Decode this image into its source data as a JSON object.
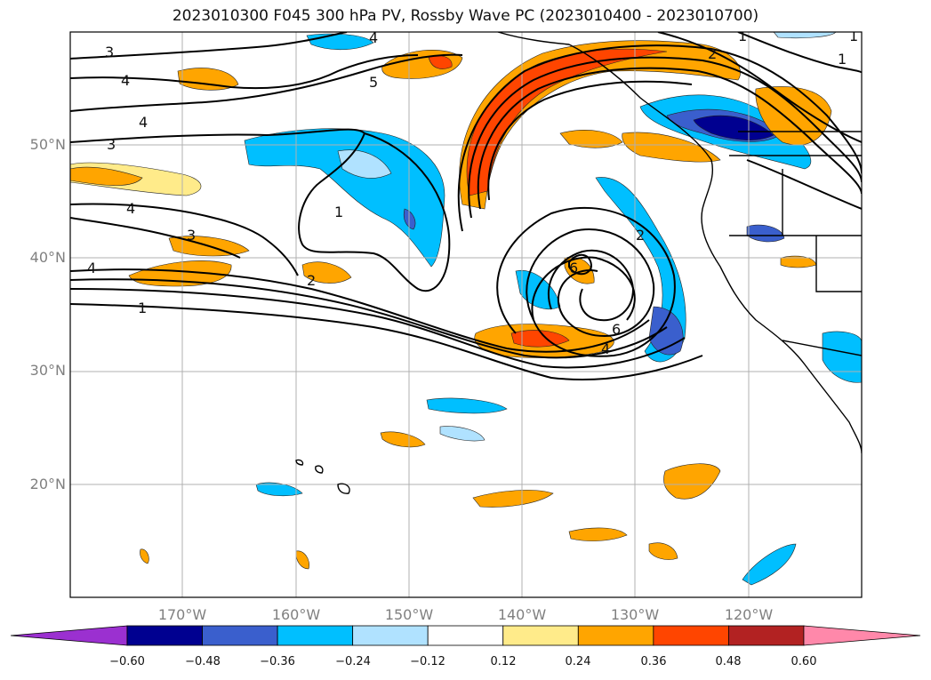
{
  "title": "2023010300 F045 300 hPa PV, Rossby Wave PC (2023010400 - 2023010700)",
  "lat_labels": [
    "50°N",
    "40°N",
    "30°N",
    "20°N"
  ],
  "lon_labels": [
    "170°W",
    "160°W",
    "150°W",
    "140°W",
    "130°W",
    "120°W"
  ],
  "colorbar": {
    "ticks": [
      "−0.60",
      "−0.48",
      "−0.36",
      "−0.24",
      "−0.12",
      "0.12",
      "0.24",
      "0.36",
      "0.48",
      "0.60"
    ],
    "colors": [
      "#9b30d0",
      "#000090",
      "#3a5fcd",
      "#00bfff",
      "#b0e2ff",
      "#ffffff",
      "#ffeb8a",
      "#ffa500",
      "#ff4500",
      "#b22222",
      "#ff88aa"
    ]
  },
  "contour_labels": [
    "3",
    "4",
    "4",
    "3",
    "4",
    "4",
    "3",
    "2",
    "1",
    "5",
    "4",
    "1",
    "2",
    "1",
    "6",
    "6",
    "4",
    "2",
    "1",
    "1"
  ],
  "colors": {
    "blue_light": "#b0e2ff",
    "blue": "#00bfff",
    "blue_mid": "#3a5fcd",
    "blue_dark": "#000090",
    "yellow": "#ffeb8a",
    "orange": "#ffa500",
    "red": "#ff4500",
    "grid": "#b0b0b0"
  }
}
